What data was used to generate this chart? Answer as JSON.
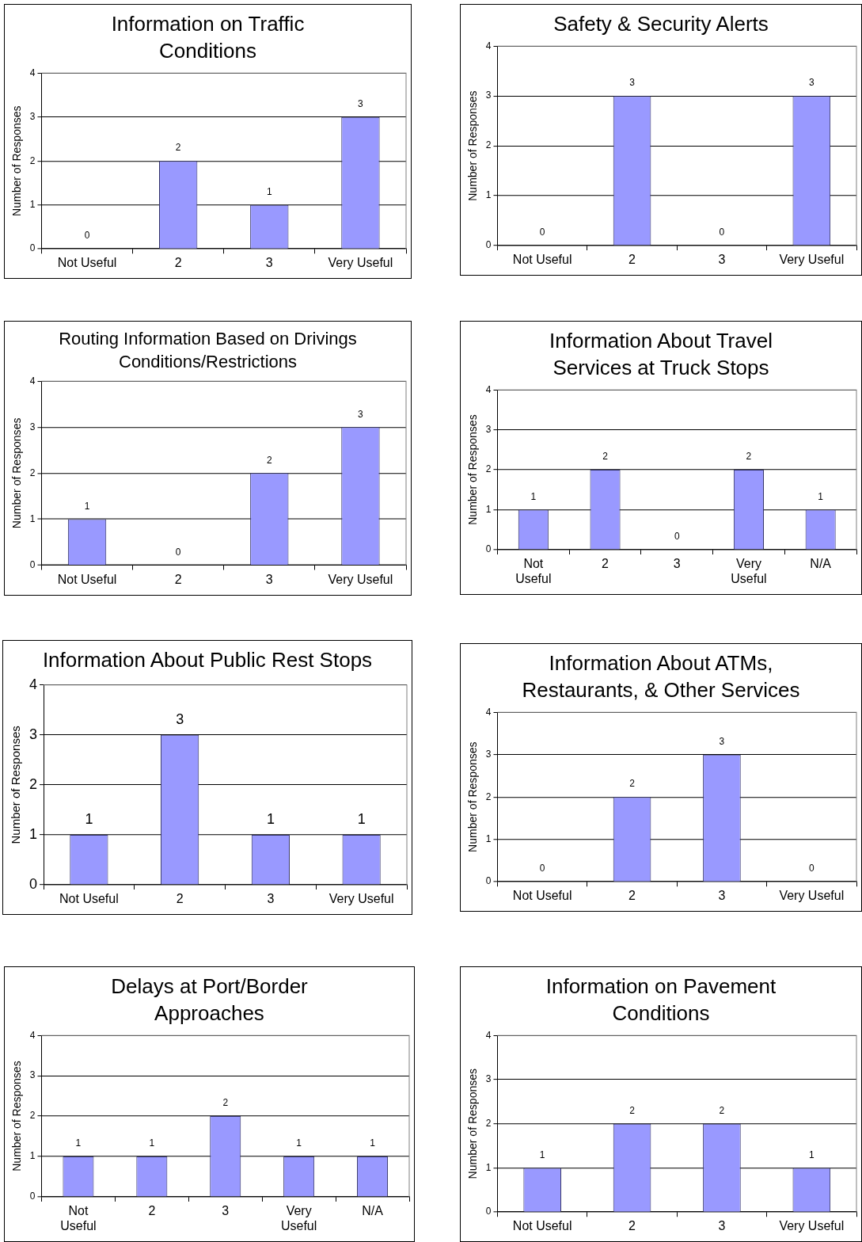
{
  "chart_data": [
    {
      "type": "bar",
      "title": "Information on Traffic Conditions",
      "ylabel": "Number of Responses",
      "categories": [
        "Not Useful",
        "2",
        "3",
        "Very Useful"
      ],
      "values": [
        0,
        2,
        1,
        3
      ],
      "color": "#9999ff",
      "ylim": [
        0,
        4
      ],
      "yticks": [
        0,
        1,
        2,
        3,
        4
      ],
      "grid": "y",
      "data_labels": true
    },
    {
      "type": "bar",
      "title": "Safety & Security Alerts",
      "ylabel": "Number of Responses",
      "categories": [
        "Not Useful",
        "2",
        "3",
        "Very Useful"
      ],
      "values": [
        0,
        3,
        0,
        3
      ],
      "color": "#9999ff",
      "ylim": [
        0,
        4
      ],
      "yticks": [
        0,
        1,
        2,
        3,
        4
      ],
      "grid": "y",
      "data_labels": true
    },
    {
      "type": "bar",
      "title": "Routing Information Based on Drivings Conditions/Restrictions",
      "ylabel": "Number of Responses",
      "categories": [
        "Not Useful",
        "2",
        "3",
        "Very Useful"
      ],
      "values": [
        1,
        0,
        2,
        3
      ],
      "color": "#9999ff",
      "ylim": [
        0,
        4
      ],
      "yticks": [
        0,
        1,
        2,
        3,
        4
      ],
      "grid": "y",
      "data_labels": true
    },
    {
      "type": "bar",
      "title": "Information About Travel Services at Truck Stops",
      "ylabel": "Number of Responses",
      "categories": [
        "Not Useful",
        "2",
        "3",
        "Very Useful",
        "N/A"
      ],
      "values": [
        1,
        2,
        0,
        2,
        1
      ],
      "color": "#9999ff",
      "ylim": [
        0,
        4
      ],
      "yticks": [
        0,
        1,
        2,
        3,
        4
      ],
      "grid": "y",
      "data_labels": true
    },
    {
      "type": "bar",
      "title": "Information About Public Rest Stops",
      "ylabel": "Number of Responses",
      "categories": [
        "Not Useful",
        "2",
        "3",
        "Very Useful"
      ],
      "values": [
        1,
        3,
        1,
        1
      ],
      "color": "#9999ff",
      "ylim": [
        0,
        4
      ],
      "yticks": [
        0,
        1,
        2,
        3,
        4
      ],
      "grid": "y",
      "data_labels": true
    },
    {
      "type": "bar",
      "title": "Information About ATMs, Restaurants, & Other Services",
      "ylabel": "Number of Responses",
      "categories": [
        "Not Useful",
        "2",
        "3",
        "Very Useful"
      ],
      "values": [
        0,
        2,
        3,
        0
      ],
      "color": "#9999ff",
      "ylim": [
        0,
        4
      ],
      "yticks": [
        0,
        1,
        2,
        3,
        4
      ],
      "grid": "y",
      "data_labels": true
    },
    {
      "type": "bar",
      "title": "Delays at Port/Border Approaches",
      "ylabel": "Number of Responses",
      "categories": [
        "Not Useful",
        "2",
        "3",
        "Very Useful",
        "N/A"
      ],
      "values": [
        1,
        1,
        2,
        1,
        1
      ],
      "color": "#9999ff",
      "ylim": [
        0,
        4
      ],
      "yticks": [
        0,
        1,
        2,
        3,
        4
      ],
      "grid": "y",
      "data_labels": true
    },
    {
      "type": "bar",
      "title": "Information on Pavement Conditions",
      "ylabel": "Number of Responses",
      "categories": [
        "Not Useful",
        "2",
        "3",
        "Very Useful"
      ],
      "values": [
        1,
        2,
        2,
        1
      ],
      "color": "#9999ff",
      "ylim": [
        0,
        4
      ],
      "yticks": [
        0,
        1,
        2,
        3,
        4
      ],
      "grid": "y",
      "data_labels": true
    }
  ]
}
